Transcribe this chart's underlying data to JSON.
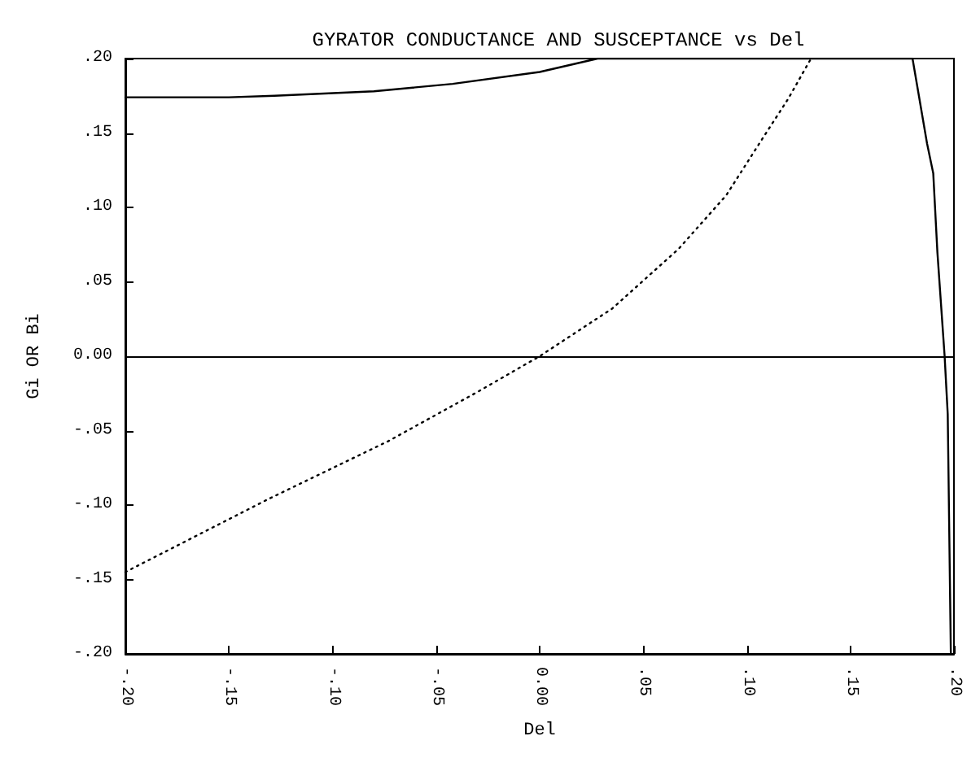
{
  "chart_data": {
    "type": "line",
    "title": "GYRATOR CONDUCTANCE AND SUSCEPTANCE vs Del",
    "xlabel": "Del",
    "ylabel": "Gi OR Bi",
    "xlim": [
      -0.2,
      0.2
    ],
    "ylim": [
      -0.2,
      0.2
    ],
    "xticks": [
      {
        "value": -0.2,
        "label": "-.20"
      },
      {
        "value": -0.15,
        "label": "-.15"
      },
      {
        "value": -0.1,
        "label": "-.10"
      },
      {
        "value": -0.05,
        "label": "-.05"
      },
      {
        "value": 0,
        "label": "0.00"
      },
      {
        "value": 0.05,
        "label": ".05"
      },
      {
        "value": 0.1,
        "label": ".10"
      },
      {
        "value": 0.15,
        "label": ".15"
      },
      {
        "value": 0.2,
        "label": ".20"
      }
    ],
    "yticks": [
      {
        "value": -0.2,
        "label": "-.20"
      },
      {
        "value": -0.15,
        "label": "-.15"
      },
      {
        "value": -0.1,
        "label": "-.10"
      },
      {
        "value": -0.05,
        "label": "-.05"
      },
      {
        "value": 0,
        "label": "0.00"
      },
      {
        "value": 0.05,
        "label": ".05"
      },
      {
        "value": 0.1,
        "label": ".10"
      },
      {
        "value": 0.15,
        "label": ".15"
      },
      {
        "value": 0.2,
        "label": ".20"
      }
    ],
    "grid": false,
    "marker": "none",
    "series": [
      {
        "color": "#000000",
        "line_style": "solid",
        "x": [
          -0.2,
          -0.15,
          -0.128,
          -0.08,
          -0.042,
          0,
          0.028,
          0.1,
          0.18,
          0.187,
          0.19,
          0.192,
          0.1955,
          0.197,
          0.1985
        ],
        "values": [
          0.174,
          0.174,
          0.175,
          0.178,
          0.183,
          0.191,
          0.2,
          0.2,
          0.2,
          0.143,
          0.123,
          0.07,
          0,
          -0.039,
          -0.2
        ]
      },
      {
        "color": "#000000",
        "line_style": "dotted",
        "x": [
          -0.2,
          -0.131,
          -0.073,
          -0.03,
          0,
          0.035,
          0.067,
          0.09,
          0.107,
          0.12,
          0.131
        ],
        "values": [
          -0.145,
          -0.096,
          -0.057,
          -0.024,
          0,
          0.032,
          0.072,
          0.108,
          0.145,
          0.173,
          0.2
        ]
      }
    ],
    "ref_lines": [
      {
        "axis": "y",
        "value": 0,
        "color": "#000000",
        "line_style": "solid"
      }
    ]
  }
}
